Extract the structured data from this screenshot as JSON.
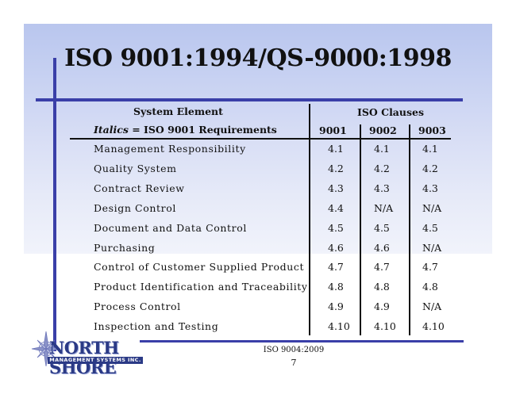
{
  "slide": {
    "title": "ISO 9001:1994/QS-9000:1998",
    "header_system_element": "System Element",
    "header_iso_clauses": "ISO Clauses",
    "header_italics_prefix": "Italics",
    "header_italics_suffix": " = ISO 9001 Requirements",
    "columns": [
      "9001",
      "9002",
      "9003"
    ],
    "rows": [
      {
        "element": "Management Responsibility",
        "c9001": "4.1",
        "c9002": "4.1",
        "c9003": "4.1"
      },
      {
        "element": "Quality System",
        "c9001": "4.2",
        "c9002": "4.2",
        "c9003": "4.2"
      },
      {
        "element": "Contract Review",
        "c9001": "4.3",
        "c9002": "4.3",
        "c9003": "4.3"
      },
      {
        "element": "Design Control",
        "c9001": "4.4",
        "c9002": "N/A",
        "c9003": "N/A"
      },
      {
        "element": "Document and Data Control",
        "c9001": "4.5",
        "c9002": "4.5",
        "c9003": "4.5"
      },
      {
        "element": "Purchasing",
        "c9001": "4.6",
        "c9002": "4.6",
        "c9003": "N/A"
      },
      {
        "element": "Control of Customer Supplied Product",
        "c9001": "4.7",
        "c9002": "4.7",
        "c9003": "4.7"
      },
      {
        "element": "Product Identification and Traceability",
        "c9001": "4.8",
        "c9002": "4.8",
        "c9003": "4.8"
      },
      {
        "element": "Process Control",
        "c9001": "4.9",
        "c9002": "4.9",
        "c9003": "N/A"
      },
      {
        "element": "Inspection and Testing",
        "c9001": "4.10",
        "c9002": "4.10",
        "c9003": "4.10"
      }
    ],
    "footer_ref": "ISO 9004:2009",
    "page_number": "7"
  },
  "logo": {
    "name": "NORTH SHORE",
    "tagline": "MANAGEMENT SYSTEMS INC."
  },
  "colors": {
    "accent": "#3a3fa8",
    "logo": "#2b3a86"
  }
}
